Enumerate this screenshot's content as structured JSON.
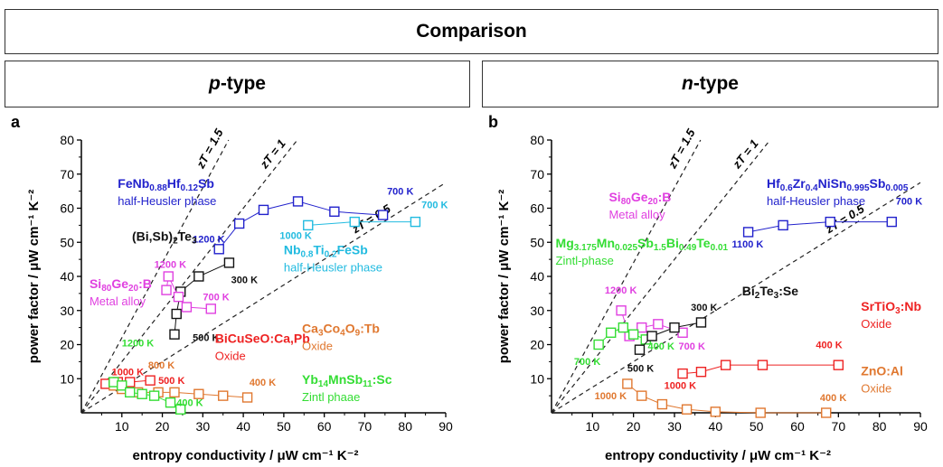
{
  "header": {
    "title": "Comparison",
    "p_type": {
      "italic": "p",
      "rest": "-type"
    },
    "n_type": {
      "italic": "n",
      "rest": "-type"
    }
  },
  "chart_data": [
    {
      "type": "scatter",
      "panel_label": "a",
      "xlabel": "entropy conductivity / μW cm⁻¹ K⁻²",
      "ylabel": "power factor / μW cm⁻¹ K⁻²",
      "xlim": [
        0,
        90
      ],
      "ylim": [
        0,
        80
      ],
      "xticks": [
        10,
        20,
        30,
        40,
        50,
        60,
        70,
        80,
        90
      ],
      "yticks": [
        10,
        20,
        30,
        40,
        50,
        60,
        70,
        80
      ],
      "grid": false,
      "zt_lines": [
        {
          "label": "zT = 1.5",
          "slope": 2.2
        },
        {
          "label": "zT = 1",
          "slope": 1.5
        },
        {
          "label": "zT = 0.5",
          "slope": 0.75
        }
      ],
      "series": [
        {
          "color": "#2222cc",
          "points": [
            [
              34,
              48
            ],
            [
              39,
              55.5
            ],
            [
              45,
              59.5
            ],
            [
              53.5,
              62
            ],
            [
              62.5,
              59
            ],
            [
              74.5,
              58
            ]
          ]
        },
        {
          "color": "#22bbe0",
          "points": [
            [
              56,
              55
            ],
            [
              67.5,
              56
            ],
            [
              82.5,
              56
            ]
          ]
        },
        {
          "color": "#111111",
          "points": [
            [
              23,
              23
            ],
            [
              23.5,
              29
            ],
            [
              24.5,
              35.5
            ],
            [
              29,
              40
            ],
            [
              36.5,
              44
            ]
          ]
        },
        {
          "color": "#e040e0",
          "points": [
            [
              21,
              36
            ],
            [
              21.5,
              40
            ],
            [
              24,
              34
            ],
            [
              26,
              31
            ],
            [
              32,
              30.5
            ]
          ]
        },
        {
          "color": "#ee2222",
          "points": [
            [
              6,
              8.5
            ],
            [
              9,
              9
            ],
            [
              12,
              9
            ],
            [
              17,
              9.5
            ]
          ]
        },
        {
          "color": "#e07830",
          "points": [
            [
              8,
              8
            ],
            [
              10,
              7
            ],
            [
              14,
              6
            ],
            [
              19,
              6
            ],
            [
              23,
              6
            ],
            [
              29,
              5.5
            ],
            [
              35,
              5
            ],
            [
              41,
              4.5
            ]
          ]
        },
        {
          "color": "#33dd33",
          "points": [
            [
              8,
              9
            ],
            [
              10,
              8
            ],
            [
              12,
              6
            ],
            [
              15,
              5.5
            ],
            [
              18,
              5
            ],
            [
              22,
              3
            ],
            [
              24.5,
              1
            ]
          ]
        }
      ],
      "temperature_labels": [
        {
          "text": "700 K",
          "x": 75.5,
          "y": 64,
          "color": "#2222cc"
        },
        {
          "text": "1200 K",
          "x": 27.5,
          "y": 50,
          "color": "#2222cc"
        },
        {
          "text": "700 K",
          "x": 84,
          "y": 60,
          "color": "#22bbe0"
        },
        {
          "text": "1000 K",
          "x": 49,
          "y": 51,
          "color": "#22bbe0"
        },
        {
          "text": "300 K",
          "x": 37,
          "y": 38,
          "color": "#111111"
        },
        {
          "text": "500 K",
          "x": 27.5,
          "y": 21,
          "color": "#111111"
        },
        {
          "text": "1200 K",
          "x": 18,
          "y": 42.5,
          "color": "#e040e0"
        },
        {
          "text": "700 K",
          "x": 30,
          "y": 33,
          "color": "#e040e0"
        },
        {
          "text": "1000 K",
          "x": 7.5,
          "y": 11,
          "color": "#ee2222"
        },
        {
          "text": "500 K",
          "x": 19,
          "y": 8.5,
          "color": "#ee2222"
        },
        {
          "text": "800 K",
          "x": 16.5,
          "y": 13,
          "color": "#e07830"
        },
        {
          "text": "400 K",
          "x": 41.5,
          "y": 8,
          "color": "#e07830"
        },
        {
          "text": "1200 K",
          "x": 10,
          "y": 19.5,
          "color": "#33dd33"
        },
        {
          "text": "400 K",
          "x": 23.5,
          "y": 2,
          "color": "#33dd33"
        }
      ],
      "compound_labels": [
        {
          "name": "FeNb0.88Hf0.12Sb",
          "phase": "half-Heusler phase",
          "x": 9,
          "y": 66,
          "color": "#2222cc"
        },
        {
          "name": "(Bi,Sb)2Te3",
          "phase": "",
          "x": 12.5,
          "y": 50.5,
          "color": "#111111"
        },
        {
          "name": "Nb0.8Ti0.2FeSb",
          "phase": "half-Heusler phase",
          "x": 50,
          "y": 46.5,
          "color": "#22bbe0"
        },
        {
          "name": "Si80Ge20:B",
          "phase": "Metal alloy",
          "x": 2,
          "y": 36.5,
          "color": "#e040e0"
        },
        {
          "name": "BiCuSeO:Ca,Pb",
          "phase": "Oxide",
          "x": 33,
          "y": 20.5,
          "color": "#ee2222"
        },
        {
          "name": "Ca3Co4O9:Tb",
          "phase": "Oxide",
          "x": 54.5,
          "y": 23.5,
          "color": "#e07830"
        },
        {
          "name": "Yb14MnSb11:Sc",
          "phase": "Zintl phaae",
          "x": 54.5,
          "y": 8.5,
          "color": "#33dd33"
        }
      ]
    },
    {
      "type": "scatter",
      "panel_label": "b",
      "xlabel": "entropy conductivity / μW cm⁻¹ K⁻²",
      "ylabel": "power factor / μW cm⁻¹ K⁻²",
      "xlim": [
        0,
        90
      ],
      "ylim": [
        0,
        80
      ],
      "xticks": [
        10,
        20,
        30,
        40,
        50,
        60,
        70,
        80,
        90
      ],
      "yticks": [
        10,
        20,
        30,
        40,
        50,
        60,
        70,
        80
      ],
      "grid": false,
      "zt_lines": [
        {
          "label": "zT = 1.5",
          "slope": 2.2
        },
        {
          "label": "zT = 1",
          "slope": 1.5
        },
        {
          "label": "zT = 0.5",
          "slope": 0.75
        }
      ],
      "series": [
        {
          "color": "#2222cc",
          "points": [
            [
              48,
              53
            ],
            [
              56.5,
              55
            ],
            [
              68,
              56
            ],
            [
              83,
              56
            ]
          ]
        },
        {
          "color": "#e040e0",
          "points": [
            [
              17,
              30
            ],
            [
              19,
              22.5
            ],
            [
              22,
              25
            ],
            [
              26,
              26
            ],
            [
              32,
              23.5
            ]
          ]
        },
        {
          "color": "#33dd33",
          "points": [
            [
              11.5,
              20
            ],
            [
              14.5,
              23.5
            ],
            [
              17.5,
              25
            ],
            [
              20,
              23
            ],
            [
              23,
              21.5
            ]
          ]
        },
        {
          "color": "#111111",
          "points": [
            [
              21.5,
              18.5
            ],
            [
              24.5,
              22.5
            ],
            [
              30,
              25
            ],
            [
              36.5,
              26.5
            ]
          ]
        },
        {
          "color": "#ee2222",
          "points": [
            [
              32,
              11.5
            ],
            [
              36.5,
              12
            ],
            [
              42.5,
              14
            ],
            [
              51.5,
              14
            ],
            [
              70,
              14
            ]
          ]
        },
        {
          "color": "#e07830",
          "points": [
            [
              18.5,
              8.5
            ],
            [
              22,
              5
            ],
            [
              27,
              2.5
            ],
            [
              33,
              1
            ],
            [
              40,
              0.3
            ],
            [
              51,
              0
            ],
            [
              67,
              0
            ]
          ]
        }
      ],
      "temperature_labels": [
        {
          "text": "700 K",
          "x": 84,
          "y": 61,
          "color": "#2222cc"
        },
        {
          "text": "1100 K",
          "x": 44,
          "y": 48.5,
          "color": "#2222cc"
        },
        {
          "text": "1200 K",
          "x": 13,
          "y": 35,
          "color": "#e040e0"
        },
        {
          "text": "700 K",
          "x": 31,
          "y": 18.5,
          "color": "#e040e0"
        },
        {
          "text": "400 K",
          "x": 23.5,
          "y": 18.5,
          "color": "#33dd33"
        },
        {
          "text": "700 K",
          "x": 5.5,
          "y": 14,
          "color": "#33dd33"
        },
        {
          "text": "300 K",
          "x": 34,
          "y": 30,
          "color": "#111111"
        },
        {
          "text": "500 K",
          "x": 18.5,
          "y": 12,
          "color": "#111111"
        },
        {
          "text": "400 K",
          "x": 64.5,
          "y": 19,
          "color": "#ee2222"
        },
        {
          "text": "1000 K",
          "x": 27.5,
          "y": 7,
          "color": "#ee2222"
        },
        {
          "text": "1000 K",
          "x": 10.5,
          "y": 4,
          "color": "#e07830"
        },
        {
          "text": "400 K",
          "x": 65.5,
          "y": 3.5,
          "color": "#e07830"
        }
      ],
      "compound_labels": [
        {
          "name": "Hf0.6Zr0.4NiSn0.995Sb0.005",
          "phase": "half-Heusler phase",
          "x": 52.5,
          "y": 66,
          "color": "#2222cc"
        },
        {
          "name": "Si80Ge20:B",
          "phase": "Metal alloy",
          "x": 14,
          "y": 62,
          "color": "#e040e0"
        },
        {
          "name": "Mg3.175Mn0.025Sb1.5Bi0.49Te0.01",
          "phase": "Zintl-phase",
          "x": 1,
          "y": 48.5,
          "color": "#33dd33"
        },
        {
          "name": "Bi2Te3:Se",
          "phase": "",
          "x": 46.5,
          "y": 34.5,
          "color": "#111111"
        },
        {
          "name": "SrTiO3:Nb",
          "phase": "Oxide",
          "x": 75.5,
          "y": 30,
          "color": "#ee2222"
        },
        {
          "name": "ZnO:Al",
          "phase": "Oxide",
          "x": 75.5,
          "y": 11,
          "color": "#e07830"
        }
      ]
    }
  ]
}
